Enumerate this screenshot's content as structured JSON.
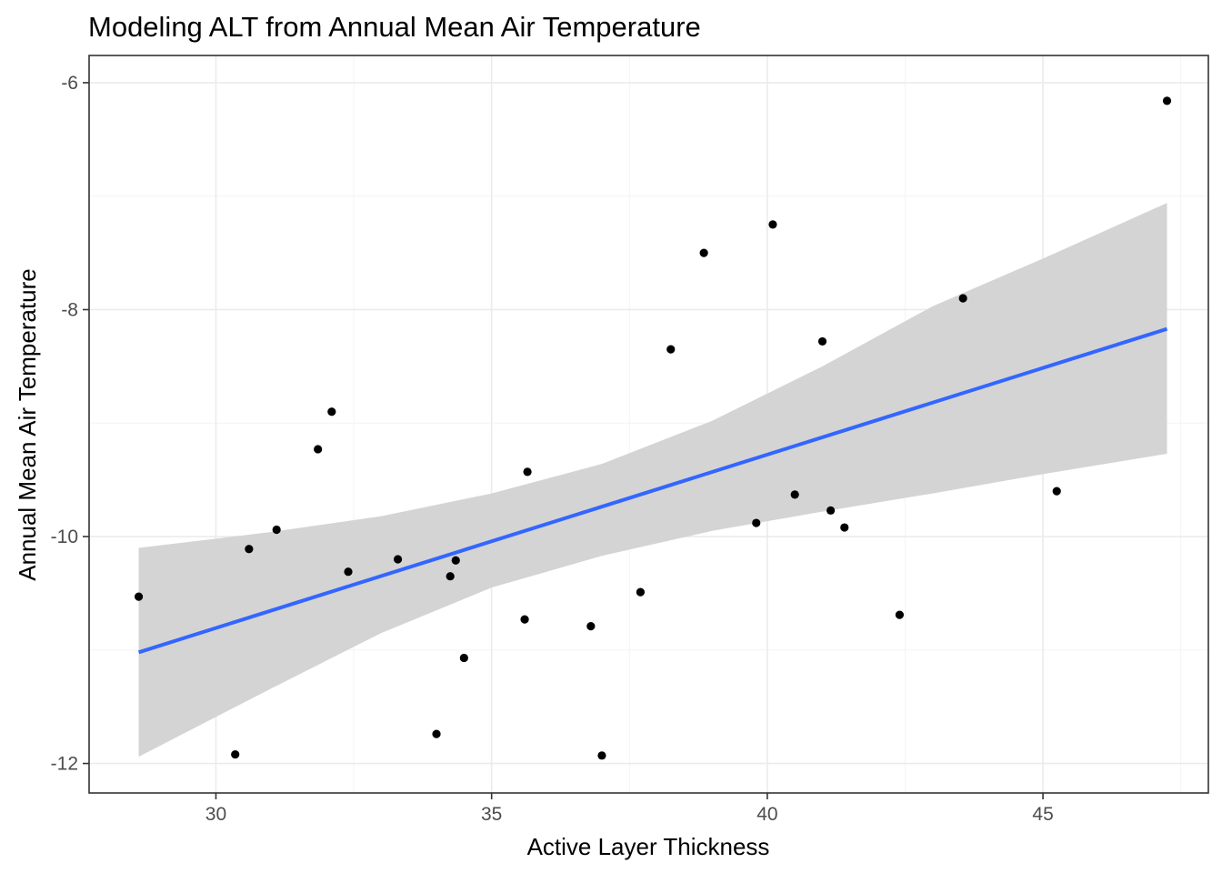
{
  "chart_data": {
    "type": "scatter",
    "title": "Modeling ALT from Annual Mean Air Temperature",
    "xlabel": "Active Layer Thickness",
    "ylabel": "Annual Mean Air Temperature",
    "xlim": [
      27.7,
      48.0
    ],
    "ylim": [
      -12.26,
      -5.76
    ],
    "x_ticks": [
      30,
      35,
      40,
      45
    ],
    "x_tick_labels": [
      "30",
      "35",
      "40",
      "45"
    ],
    "y_ticks": [
      -12,
      -10,
      -8,
      -6
    ],
    "y_tick_labels": [
      "-12",
      "-10",
      "-8",
      "-6"
    ],
    "grid": true,
    "points": [
      {
        "x": 28.6,
        "y": -10.53
      },
      {
        "x": 30.35,
        "y": -11.92
      },
      {
        "x": 30.6,
        "y": -10.11
      },
      {
        "x": 31.1,
        "y": -9.94
      },
      {
        "x": 31.85,
        "y": -9.23
      },
      {
        "x": 32.1,
        "y": -8.9
      },
      {
        "x": 32.4,
        "y": -10.31
      },
      {
        "x": 33.3,
        "y": -10.2
      },
      {
        "x": 34.0,
        "y": -11.74
      },
      {
        "x": 34.25,
        "y": -10.35
      },
      {
        "x": 34.35,
        "y": -10.21
      },
      {
        "x": 34.5,
        "y": -11.07
      },
      {
        "x": 35.6,
        "y": -10.73
      },
      {
        "x": 35.65,
        "y": -9.43
      },
      {
        "x": 36.8,
        "y": -10.79
      },
      {
        "x": 37.0,
        "y": -11.93
      },
      {
        "x": 37.7,
        "y": -10.49
      },
      {
        "x": 38.25,
        "y": -8.35
      },
      {
        "x": 38.85,
        "y": -7.5
      },
      {
        "x": 39.8,
        "y": -9.88
      },
      {
        "x": 40.1,
        "y": -7.25
      },
      {
        "x": 40.5,
        "y": -9.63
      },
      {
        "x": 41.0,
        "y": -8.28
      },
      {
        "x": 41.15,
        "y": -9.77
      },
      {
        "x": 41.4,
        "y": -9.92
      },
      {
        "x": 42.4,
        "y": -10.69
      },
      {
        "x": 43.55,
        "y": -7.9
      },
      {
        "x": 45.25,
        "y": -9.6
      },
      {
        "x": 47.25,
        "y": -6.16
      }
    ],
    "fit": {
      "method": "lm",
      "x": [
        28.6,
        47.25
      ],
      "y": [
        -11.02,
        -8.17
      ]
    },
    "confidence_band": {
      "x": [
        28.6,
        31.0,
        33.0,
        35.0,
        37.0,
        39.0,
        41.0,
        43.0,
        45.0,
        47.25
      ],
      "lower": [
        -11.94,
        -11.34,
        -10.85,
        -10.45,
        -10.17,
        -9.95,
        -9.78,
        -9.62,
        -9.45,
        -9.27
      ],
      "upper": [
        -10.1,
        -9.96,
        -9.82,
        -9.62,
        -9.36,
        -8.98,
        -8.5,
        -7.97,
        -7.55,
        -7.06
      ]
    },
    "colors": {
      "points": "#000000",
      "fit_line": "#3366ff",
      "ribbon": "#d4d4d4"
    }
  }
}
